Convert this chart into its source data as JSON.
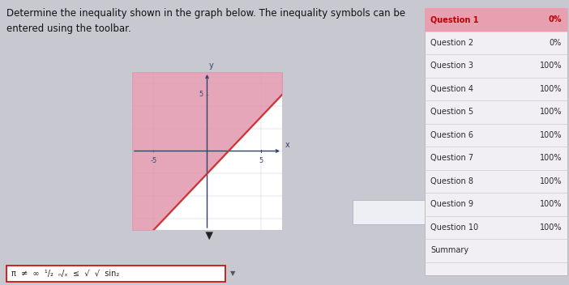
{
  "background_color": "#c8c8d0",
  "graph_bg": "#ffffff",
  "title_text": "Determine the inequality shown in the graph below. The inequality symbols can be\nentered using the toolbar.",
  "title_fontsize": 8.5,
  "title_color": "#111111",
  "xlim": [
    -7,
    7
  ],
  "ylim": [
    -7,
    7
  ],
  "xticks": [
    -5,
    5
  ],
  "yticks": [
    5
  ],
  "axis_label_x": "x",
  "axis_label_y": "y",
  "line_slope": 1,
  "line_intercept": -2,
  "line_color": "#cc3333",
  "line_width": 1.5,
  "shade_color": "#e090a8",
  "shade_alpha": 0.8,
  "grid_color": "#b0b0cc",
  "grid_alpha": 0.6,
  "grid_linewidth": 0.35,
  "panel_bg": "#f2eff4",
  "panel_header_bg": "#e8a0b0",
  "panel_border": "#bbbbbb",
  "questions": [
    "Question 1",
    "Question 2",
    "Question 3",
    "Question 4",
    "Question 5",
    "Question 6",
    "Question 7",
    "Question 8",
    "Question 9",
    "Question 10",
    "Summary"
  ],
  "scores": [
    "0%",
    "0%",
    "100%",
    "100%",
    "100%",
    "100%",
    "100%",
    "100%",
    "100%",
    "100%",
    ""
  ],
  "toolbar_bg": "#ffffff",
  "toolbar_border": "#cc0000",
  "toolbar_text": "π  ≠  ∞  ¹/₂  ₙ/ₓ  ≤  √  √  sin₂"
}
